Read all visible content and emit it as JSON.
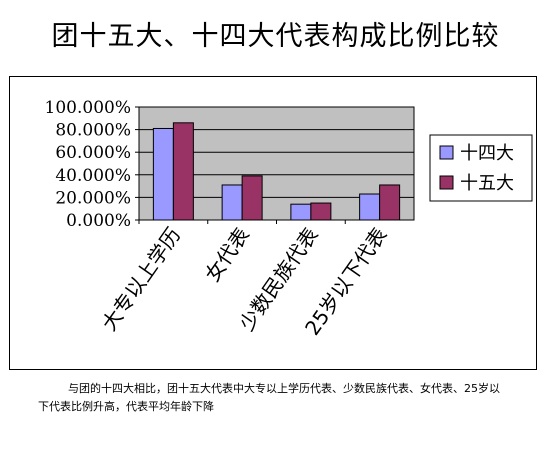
{
  "title": "团十五大、十四大代表构成比例比较",
  "caption": "与团的十四大相比，团十五大代表中大专以上学历代表、少数民族代表、女代表、25岁以下代表比例升高，代表平均年龄下降",
  "colors": {
    "plot_background": "#c0c0c0",
    "series_14": "#9999ff",
    "series_15": "#993366"
  },
  "chart_data": {
    "type": "bar",
    "categories": [
      "大专以上学历",
      "女代表",
      "少数民族代表",
      "25岁以下代表"
    ],
    "series": [
      {
        "name": "十四大",
        "values": [
          81.0,
          31.0,
          14.0,
          23.0
        ]
      },
      {
        "name": "十五大",
        "values": [
          86.0,
          39.0,
          15.0,
          31.0
        ]
      }
    ],
    "yticks": [
      "100.000%",
      "80.000%",
      "60.000%",
      "40.000%",
      "20.000%",
      "0.000%"
    ],
    "ylim": [
      0,
      100
    ],
    "grid": true,
    "legend": "right"
  }
}
